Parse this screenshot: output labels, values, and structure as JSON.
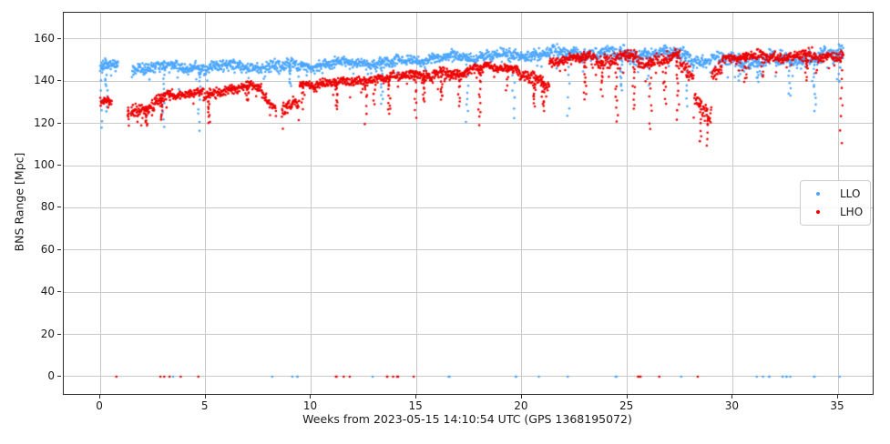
{
  "chart_data": {
    "type": "scatter",
    "title": "",
    "xlabel": "Weeks from 2023-05-15 14:10:54 UTC (GPS 1368195072)",
    "ylabel": "BNS Range [Mpc]",
    "x_units": "weeks",
    "y_units": "Mpc",
    "xticks": [
      0,
      5,
      10,
      15,
      20,
      25,
      30,
      35
    ],
    "yticks": [
      0,
      20,
      40,
      60,
      80,
      100,
      120,
      140,
      160
    ],
    "xlim": [
      -1.73,
      36.64
    ],
    "ylim": [
      -8.2,
      172.5
    ],
    "grid": true,
    "legend": {
      "position": "center-right",
      "entries": [
        {
          "label": "LLO",
          "color": "#4ba6ff"
        },
        {
          "label": "LHO",
          "color": "#ee0000"
        }
      ]
    },
    "series": [
      {
        "name": "LLO",
        "color": "#4ba6ff",
        "band_segments": [
          [
            0.0,
            0.85,
            147.0,
            147.5,
            3.2,
            70
          ],
          [
            1.5,
            9.3,
            146.5,
            147.5,
            3.6,
            60
          ],
          [
            9.3,
            14.0,
            147.5,
            149.5,
            3.2,
            60
          ],
          [
            14.0,
            17.0,
            150.0,
            151.5,
            3.0,
            60
          ],
          [
            17.0,
            20.0,
            151.5,
            152.5,
            3.2,
            60
          ],
          [
            20.0,
            23.5,
            153.0,
            153.5,
            3.8,
            60
          ],
          [
            23.5,
            28.0,
            152.5,
            153.0,
            4.2,
            60
          ],
          [
            28.0,
            32.0,
            149.5,
            150.5,
            4.5,
            60
          ],
          [
            32.0,
            35.25,
            150.0,
            152.0,
            4.5,
            60
          ]
        ],
        "dropouts": [
          [
            0.05,
            117
          ],
          [
            0.3,
            127
          ],
          [
            3.0,
            118
          ],
          [
            4.7,
            117
          ],
          [
            9.0,
            137
          ],
          [
            13.35,
            130
          ],
          [
            17.4,
            121
          ],
          [
            19.6,
            122
          ],
          [
            22.2,
            123
          ],
          [
            24.7,
            135
          ],
          [
            26.0,
            139
          ],
          [
            27.8,
            128
          ],
          [
            30.3,
            140
          ],
          [
            31.2,
            139
          ],
          [
            32.7,
            133
          ],
          [
            33.9,
            127
          ],
          [
            35.05,
            139
          ]
        ],
        "zeros": [
          3.45,
          8.17,
          9.12,
          9.34,
          12.93,
          14.1,
          16.54,
          19.7,
          20.79,
          22.16,
          24.46,
          27.57,
          31.15,
          31.45,
          31.74,
          32.37,
          32.57,
          32.74,
          33.89,
          35.05
        ]
      },
      {
        "name": "LHO",
        "color": "#ee0000",
        "band_segments": [
          [
            0.0,
            0.55,
            130.0,
            130.0,
            2.8,
            70
          ],
          [
            1.45,
            2.6,
            126.5,
            128.5,
            4.0,
            65
          ],
          [
            2.6,
            3.6,
            130.5,
            133.5,
            3.5,
            65
          ],
          [
            3.6,
            4.9,
            134.0,
            135.0,
            2.6,
            60
          ],
          [
            4.9,
            5.6,
            133.5,
            134.0,
            3.2,
            60
          ],
          [
            5.6,
            7.6,
            136.0,
            137.5,
            2.6,
            60
          ],
          [
            7.6,
            8.35,
            136.0,
            127.0,
            3.2,
            60
          ],
          [
            8.6,
            9.45,
            126.0,
            128.5,
            4.2,
            65
          ],
          [
            9.45,
            11.5,
            138.5,
            139.5,
            2.8,
            60
          ],
          [
            11.5,
            14.0,
            140.0,
            141.5,
            3.0,
            60
          ],
          [
            14.0,
            15.1,
            142.5,
            144.5,
            3.0,
            60
          ],
          [
            15.1,
            16.5,
            141.5,
            143.0,
            3.4,
            60
          ],
          [
            16.5,
            18.2,
            143.5,
            146.0,
            3.0,
            60
          ],
          [
            18.2,
            19.8,
            146.5,
            147.0,
            2.8,
            60
          ],
          [
            19.8,
            21.3,
            142.5,
            139.0,
            3.6,
            60
          ],
          [
            21.3,
            23.5,
            149.5,
            151.0,
            3.2,
            60
          ],
          [
            23.5,
            25.5,
            150.0,
            151.5,
            3.8,
            60
          ],
          [
            25.5,
            27.5,
            149.5,
            151.5,
            4.0,
            60
          ],
          [
            27.5,
            28.15,
            146.0,
            142.0,
            3.8,
            60
          ],
          [
            28.15,
            29.0,
            133.0,
            124.0,
            6.0,
            55
          ],
          [
            29.0,
            29.5,
            140.0,
            147.0,
            4.0,
            55
          ],
          [
            29.5,
            31.5,
            151.5,
            152.5,
            3.0,
            60
          ],
          [
            31.5,
            33.5,
            151.0,
            153.0,
            3.2,
            60
          ],
          [
            33.5,
            35.25,
            150.5,
            153.0,
            3.6,
            60
          ]
        ],
        "dropouts": [
          [
            1.3,
            120
          ],
          [
            2.2,
            119
          ],
          [
            2.9,
            121
          ],
          [
            5.15,
            120
          ],
          [
            7.0,
            130
          ],
          [
            9.6,
            128
          ],
          [
            11.2,
            127
          ],
          [
            12.6,
            119
          ],
          [
            13.0,
            128
          ],
          [
            13.7,
            124
          ],
          [
            14.95,
            123
          ],
          [
            15.35,
            130
          ],
          [
            16.2,
            131
          ],
          [
            17.0,
            128
          ],
          [
            18.0,
            120
          ],
          [
            19.3,
            136
          ],
          [
            20.6,
            128
          ],
          [
            21.0,
            126
          ],
          [
            23.0,
            131
          ],
          [
            23.8,
            134
          ],
          [
            24.5,
            121
          ],
          [
            25.3,
            127
          ],
          [
            26.1,
            117
          ],
          [
            26.8,
            130
          ],
          [
            27.4,
            123
          ],
          [
            28.45,
            112
          ],
          [
            28.8,
            110.5
          ],
          [
            30.6,
            140
          ],
          [
            31.4,
            142
          ],
          [
            33.5,
            141
          ],
          [
            35.15,
            111
          ]
        ],
        "zeros": [
          0.75,
          2.85,
          3.05,
          3.3,
          3.8,
          4.65,
          11.2,
          11.55,
          11.85,
          13.6,
          13.88,
          14.1,
          14.87,
          25.55,
          25.65,
          26.5,
          28.35
        ]
      }
    ]
  }
}
